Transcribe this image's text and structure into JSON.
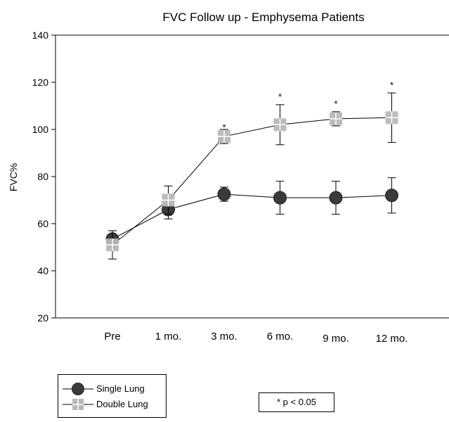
{
  "chart_data": {
    "type": "line",
    "title": "FVC Follow up - Emphysema Patients",
    "xlabel": "",
    "ylabel": "FVC%",
    "categories": [
      "Pre",
      "1 mo.",
      "3 mo.",
      "6 mo.",
      "9 mo.",
      "12 mo."
    ],
    "ylim": [
      20,
      140
    ],
    "yticks": [
      20,
      40,
      60,
      80,
      100,
      120,
      140
    ],
    "grid": false,
    "legend_position": "bottom-left",
    "series": [
      {
        "name": "Single Lung",
        "marker": "circle",
        "color": "#3a3a3a",
        "values": [
          53.5,
          66,
          72.5,
          71,
          71,
          72
        ],
        "error": [
          3.5,
          4,
          3,
          7,
          7,
          7.5
        ]
      },
      {
        "name": "Double Lung",
        "marker": "square-cross",
        "color": "#b8b8b8",
        "values": [
          51,
          70,
          97,
          102,
          104.5,
          105
        ],
        "error": [
          6,
          6,
          3,
          8.5,
          3,
          10.5
        ]
      }
    ],
    "significance_marks": [
      {
        "category": "3 mo.",
        "label": "*",
        "value": 101
      },
      {
        "category": "6 mo.",
        "label": "*",
        "value": 114
      },
      {
        "category": "9 mo.",
        "label": "*",
        "value": 111
      },
      {
        "category": "12 mo.",
        "label": "*",
        "value": 119
      }
    ],
    "note": "* p < 0.05"
  }
}
